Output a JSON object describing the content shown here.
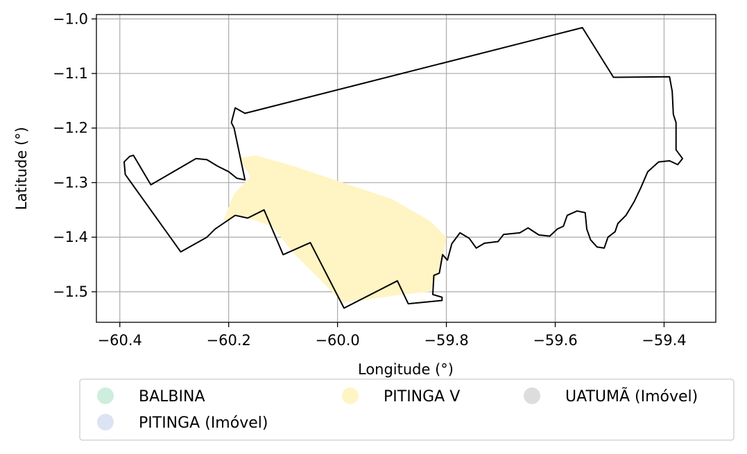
{
  "chart_data": {
    "type": "map",
    "xlabel": "Longitude (°)",
    "ylabel": "Latitude (°)",
    "xlim": [
      -60.443,
      -59.305
    ],
    "ylim": [
      -1.556,
      -0.992
    ],
    "grid": true,
    "xticks": [
      -60.4,
      -60.2,
      -60.0,
      -59.8,
      -59.6,
      -59.4
    ],
    "xtick_labels": [
      "−60.4",
      "−60.2",
      "−60.0",
      "−59.8",
      "−59.6",
      "−59.4"
    ],
    "yticks": [
      -1.0,
      -1.1,
      -1.2,
      -1.3,
      -1.4,
      -1.5
    ],
    "ytick_labels": [
      "−1.0",
      "−1.1",
      "−1.2",
      "−1.3",
      "−1.4",
      "−1.5"
    ],
    "legend_position": "below",
    "legend": [
      {
        "label": "BALBINA",
        "color": "#cdeedd"
      },
      {
        "label": "PITINGA V",
        "color": "#fff4c4"
      },
      {
        "label": "UATUMÃ (Imóvel)",
        "color": "#dddddd"
      },
      {
        "label": "PITINGA (Imóvel)",
        "color": "#dce3f2"
      }
    ],
    "boundary": [
      [
        -60.17,
        -1.295
      ],
      [
        -60.19,
        -1.2
      ],
      [
        -60.195,
        -1.19
      ],
      [
        -60.188,
        -1.163
      ],
      [
        -60.17,
        -1.173
      ],
      [
        -59.55,
        -1.016
      ],
      [
        -59.493,
        -1.107
      ],
      [
        -59.39,
        -1.106
      ],
      [
        -59.385,
        -1.133
      ],
      [
        -59.383,
        -1.175
      ],
      [
        -59.378,
        -1.19
      ],
      [
        -59.378,
        -1.24
      ],
      [
        -59.366,
        -1.256
      ],
      [
        -59.375,
        -1.267
      ],
      [
        -59.39,
        -1.26
      ],
      [
        -59.41,
        -1.262
      ],
      [
        -59.43,
        -1.28
      ],
      [
        -59.443,
        -1.31
      ],
      [
        -59.455,
        -1.335
      ],
      [
        -59.47,
        -1.36
      ],
      [
        -59.485,
        -1.375
      ],
      [
        -59.49,
        -1.39
      ],
      [
        -59.503,
        -1.4
      ],
      [
        -59.51,
        -1.42
      ],
      [
        -59.523,
        -1.418
      ],
      [
        -59.535,
        -1.405
      ],
      [
        -59.542,
        -1.385
      ],
      [
        -59.545,
        -1.355
      ],
      [
        -59.56,
        -1.352
      ],
      [
        -59.578,
        -1.36
      ],
      [
        -59.585,
        -1.38
      ],
      [
        -59.596,
        -1.385
      ],
      [
        -59.61,
        -1.398
      ],
      [
        -59.63,
        -1.396
      ],
      [
        -59.65,
        -1.383
      ],
      [
        -59.665,
        -1.392
      ],
      [
        -59.695,
        -1.395
      ],
      [
        -59.705,
        -1.408
      ],
      [
        -59.73,
        -1.411
      ],
      [
        -59.745,
        -1.42
      ],
      [
        -59.758,
        -1.402
      ],
      [
        -59.775,
        -1.392
      ],
      [
        -59.79,
        -1.412
      ],
      [
        -59.798,
        -1.442
      ],
      [
        -59.807,
        -1.432
      ],
      [
        -59.813,
        -1.466
      ],
      [
        -59.823,
        -1.47
      ],
      [
        -59.825,
        -1.505
      ],
      [
        -59.808,
        -1.51
      ],
      [
        -59.808,
        -1.516
      ],
      [
        -59.87,
        -1.522
      ],
      [
        -59.89,
        -1.48
      ],
      [
        -59.988,
        -1.53
      ],
      [
        -60.05,
        -1.41
      ],
      [
        -60.1,
        -1.432
      ],
      [
        -60.135,
        -1.35
      ],
      [
        -60.165,
        -1.365
      ],
      [
        -60.188,
        -1.36
      ],
      [
        -60.225,
        -1.385
      ],
      [
        -60.24,
        -1.4
      ],
      [
        -60.288,
        -1.427
      ],
      [
        -60.39,
        -1.285
      ],
      [
        -60.392,
        -1.262
      ],
      [
        -60.382,
        -1.252
      ],
      [
        -60.375,
        -1.25
      ],
      [
        -60.343,
        -1.304
      ],
      [
        -60.26,
        -1.256
      ],
      [
        -60.24,
        -1.258
      ],
      [
        -60.22,
        -1.27
      ],
      [
        -60.2,
        -1.28
      ],
      [
        -60.185,
        -1.292
      ],
      [
        -60.17,
        -1.295
      ]
    ],
    "pitinga_v_area": [
      [
        -60.18,
        -1.255
      ],
      [
        -60.15,
        -1.25
      ],
      [
        -60.08,
        -1.27
      ],
      [
        -59.99,
        -1.3
      ],
      [
        -59.9,
        -1.33
      ],
      [
        -59.83,
        -1.37
      ],
      [
        -59.8,
        -1.4
      ],
      [
        -59.808,
        -1.45
      ],
      [
        -59.83,
        -1.5
      ],
      [
        -59.88,
        -1.505
      ],
      [
        -59.99,
        -1.52
      ],
      [
        -60.04,
        -1.47
      ],
      [
        -60.08,
        -1.43
      ],
      [
        -60.12,
        -1.38
      ],
      [
        -60.18,
        -1.36
      ],
      [
        -60.21,
        -1.37
      ],
      [
        -60.19,
        -1.32
      ],
      [
        -60.16,
        -1.29
      ],
      [
        -60.18,
        -1.255
      ]
    ]
  }
}
